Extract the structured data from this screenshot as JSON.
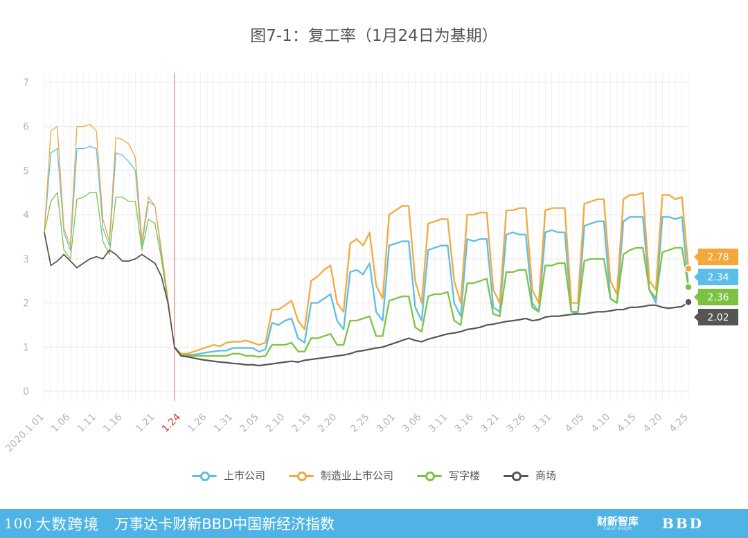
{
  "chart_data": {
    "type": "line",
    "title": "图7-1：复工率（1月24日为基期）",
    "ylim": [
      0,
      7
    ],
    "yticks": [
      "0",
      "1",
      "2",
      "3",
      "4",
      "5",
      "6",
      "7"
    ],
    "xlabels": [
      "2020.1.01",
      "1.06",
      "1.11",
      "1.16",
      "1.21",
      "1.24",
      "1.26",
      "1.31",
      "2.05",
      "2.10",
      "2.15",
      "2.20",
      "2.25",
      "3.01",
      "3.06",
      "3.11",
      "3.16",
      "3.21",
      "3.26",
      "3.31",
      "4.05",
      "4.10",
      "4.15",
      "4.20",
      "4.25"
    ],
    "base_label": "1.24",
    "series": [
      {
        "name": "上市公司",
        "color": "#5bbde8",
        "end_label": "2.34",
        "values": [
          3.6,
          5.4,
          5.5,
          3.6,
          3.2,
          5.5,
          5.5,
          5.55,
          5.5,
          3.7,
          3.3,
          5.4,
          5.35,
          5.2,
          5.0,
          3.3,
          4.3,
          4.2,
          3.1,
          2.0,
          1.0,
          0.85,
          0.82,
          0.83,
          0.85,
          0.88,
          0.9,
          0.92,
          0.92,
          0.98,
          0.98,
          0.98,
          0.98,
          0.9,
          0.95,
          1.55,
          1.5,
          1.6,
          1.65,
          1.2,
          1.1,
          2.0,
          2.0,
          2.1,
          2.2,
          1.6,
          1.4,
          2.7,
          2.75,
          2.65,
          2.9,
          1.8,
          1.6,
          3.3,
          3.35,
          3.4,
          3.4,
          1.9,
          1.6,
          3.2,
          3.25,
          3.3,
          3.3,
          2.0,
          1.7,
          3.45,
          3.4,
          3.45,
          3.45,
          1.9,
          1.8,
          3.55,
          3.6,
          3.55,
          3.55,
          2.0,
          1.8,
          3.6,
          3.65,
          3.6,
          3.6,
          1.8,
          1.75,
          3.75,
          3.8,
          3.85,
          3.85,
          2.1,
          2.0,
          3.85,
          3.95,
          3.95,
          3.95,
          2.3,
          2.0,
          3.95,
          3.95,
          3.9,
          3.95,
          2.34
        ]
      },
      {
        "name": "制造业上市公司",
        "color": "#f3a83b",
        "end_label": "2.78",
        "values": [
          3.6,
          5.9,
          6.0,
          3.7,
          3.3,
          6.0,
          6.0,
          6.05,
          5.9,
          3.9,
          3.4,
          5.75,
          5.7,
          5.6,
          5.3,
          3.4,
          4.4,
          4.2,
          3.2,
          2.1,
          1.0,
          0.85,
          0.85,
          0.9,
          0.95,
          1.0,
          1.05,
          1.02,
          1.1,
          1.12,
          1.12,
          1.15,
          1.1,
          1.05,
          1.1,
          1.85,
          1.85,
          1.95,
          2.05,
          1.6,
          1.4,
          2.5,
          2.6,
          2.75,
          2.85,
          2.0,
          1.8,
          3.35,
          3.45,
          3.3,
          3.6,
          2.4,
          2.1,
          4.0,
          4.1,
          4.2,
          4.2,
          2.5,
          2.0,
          3.8,
          3.85,
          3.9,
          3.9,
          2.5,
          2.0,
          4.0,
          4.0,
          4.05,
          4.05,
          2.3,
          2.0,
          4.1,
          4.1,
          4.15,
          4.15,
          2.3,
          2.0,
          4.1,
          4.15,
          4.15,
          4.15,
          2.0,
          2.0,
          4.25,
          4.3,
          4.35,
          4.35,
          2.5,
          2.2,
          4.35,
          4.45,
          4.45,
          4.5,
          2.5,
          2.3,
          4.45,
          4.45,
          4.35,
          4.4,
          2.78
        ]
      },
      {
        "name": "写字楼",
        "color": "#7cc242",
        "end_label": "2.36",
        "values": [
          3.6,
          4.3,
          4.5,
          3.2,
          3.0,
          4.35,
          4.4,
          4.5,
          4.5,
          3.4,
          3.1,
          4.4,
          4.4,
          4.3,
          4.3,
          3.2,
          3.9,
          3.8,
          3.0,
          2.0,
          1.0,
          0.82,
          0.8,
          0.8,
          0.8,
          0.8,
          0.8,
          0.8,
          0.8,
          0.85,
          0.85,
          0.8,
          0.8,
          0.78,
          0.8,
          1.05,
          1.05,
          1.05,
          1.1,
          0.9,
          0.9,
          1.2,
          1.2,
          1.25,
          1.3,
          1.05,
          1.05,
          1.6,
          1.6,
          1.65,
          1.7,
          1.25,
          1.25,
          2.05,
          2.1,
          2.15,
          2.15,
          1.45,
          1.35,
          2.15,
          2.2,
          2.2,
          2.25,
          1.6,
          1.5,
          2.45,
          2.45,
          2.5,
          2.55,
          1.75,
          1.7,
          2.7,
          2.7,
          2.75,
          2.75,
          1.9,
          1.8,
          2.85,
          2.85,
          2.9,
          2.9,
          1.8,
          1.8,
          2.95,
          3.0,
          3.0,
          3.0,
          2.1,
          2.0,
          3.1,
          3.2,
          3.25,
          3.25,
          2.3,
          2.1,
          3.15,
          3.2,
          3.25,
          3.25,
          2.36
        ]
      },
      {
        "name": "商场",
        "color": "#555555",
        "end_label": "2.02",
        "values": [
          3.6,
          2.85,
          2.95,
          3.1,
          2.95,
          2.8,
          2.9,
          3.0,
          3.05,
          3.0,
          3.2,
          3.1,
          2.95,
          2.95,
          3.0,
          3.1,
          3.0,
          2.9,
          2.6,
          2.0,
          1.0,
          0.8,
          0.78,
          0.75,
          0.72,
          0.7,
          0.68,
          0.66,
          0.65,
          0.63,
          0.62,
          0.6,
          0.6,
          0.58,
          0.6,
          0.62,
          0.64,
          0.66,
          0.68,
          0.66,
          0.7,
          0.72,
          0.74,
          0.76,
          0.78,
          0.8,
          0.82,
          0.85,
          0.9,
          0.92,
          0.95,
          0.98,
          1.0,
          1.05,
          1.1,
          1.15,
          1.2,
          1.15,
          1.12,
          1.18,
          1.22,
          1.26,
          1.3,
          1.32,
          1.35,
          1.4,
          1.42,
          1.45,
          1.5,
          1.52,
          1.55,
          1.58,
          1.6,
          1.62,
          1.65,
          1.6,
          1.62,
          1.68,
          1.7,
          1.7,
          1.72,
          1.74,
          1.75,
          1.75,
          1.78,
          1.8,
          1.8,
          1.82,
          1.85,
          1.85,
          1.9,
          1.9,
          1.92,
          1.95,
          1.95,
          1.9,
          1.88,
          1.9,
          1.92,
          2.02
        ]
      }
    ]
  },
  "footer": {
    "logo_mark": "100",
    "logo_text": "大数跨境",
    "title": "万事达卡财新BBD中国新经济指数",
    "brand": "财新智库",
    "brand_sub": "Caixin Insight",
    "bbd": "BBD"
  }
}
